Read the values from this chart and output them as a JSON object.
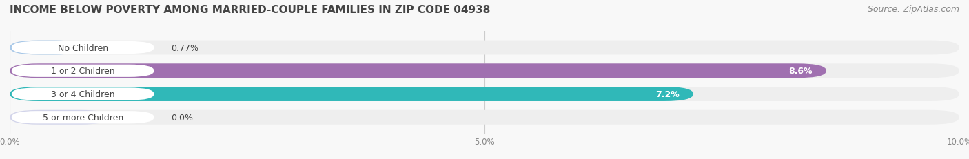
{
  "title": "INCOME BELOW POVERTY AMONG MARRIED-COUPLE FAMILIES IN ZIP CODE 04938",
  "source": "Source: ZipAtlas.com",
  "categories": [
    "No Children",
    "1 or 2 Children",
    "3 or 4 Children",
    "5 or more Children"
  ],
  "values": [
    0.77,
    8.6,
    7.2,
    0.0
  ],
  "bar_colors": [
    "#a8c8e8",
    "#a070b0",
    "#30b8b8",
    "#b8bce8"
  ],
  "bar_bg_color": "#eeeeee",
  "value_labels": [
    "0.77%",
    "8.6%",
    "7.2%",
    "0.0%"
  ],
  "value_inside": [
    false,
    true,
    true,
    false
  ],
  "xlim": [
    0,
    10.0
  ],
  "xticks": [
    0.0,
    5.0,
    10.0
  ],
  "xtick_labels": [
    "0.0%",
    "5.0%",
    "10.0%"
  ],
  "title_fontsize": 11,
  "source_fontsize": 9,
  "label_fontsize": 9,
  "value_fontsize": 9,
  "background_color": "#f8f8f8",
  "bar_height": 0.62,
  "title_color": "#444444",
  "source_color": "#888888",
  "grid_color": "#cccccc",
  "label_text_color": "#444444",
  "value_text_color_inside": "#ffffff",
  "value_text_color_outside": "#444444"
}
